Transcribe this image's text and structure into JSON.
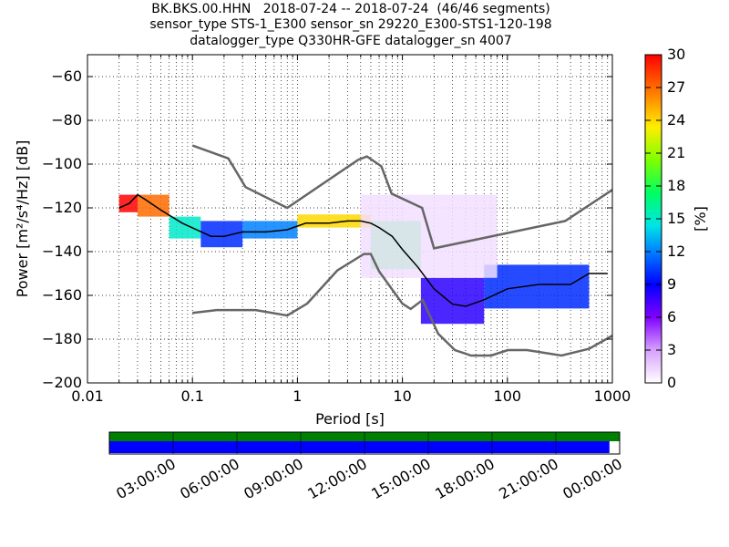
{
  "title": {
    "line1": "BK.BKS.00.HHN   2018-07-24 -- 2018-07-24  (46/46 segments)",
    "line2": "sensor_type STS-1_E300 sensor_sn 29220_E300-STS1-120-198",
    "line3": "datalogger_type Q330HR-GFE datalogger_sn 4007"
  },
  "chart_data": {
    "type": "heatmap",
    "xlabel": "Period [s]",
    "ylabel": "Power [m²/s⁴/Hz] [dB]",
    "xscale": "log",
    "xlim": [
      0.01,
      1000
    ],
    "ylim": [
      -200,
      -50
    ],
    "xticks": [
      "0.01",
      "0.1",
      "1",
      "10",
      "100",
      "1000"
    ],
    "yticks": [
      "−60",
      "−80",
      "−100",
      "−120",
      "−140",
      "−160",
      "−180",
      "−200"
    ],
    "yticks_values": [
      -60,
      -80,
      -100,
      -120,
      -140,
      -160,
      -180,
      -200
    ],
    "grid": true,
    "colorbar": {
      "label": "[%]",
      "min": 0,
      "max": 30,
      "ticks": [
        "0",
        "3",
        "6",
        "9",
        "12",
        "15",
        "18",
        "21",
        "24",
        "27",
        "30"
      ],
      "tick_values": [
        0,
        3,
        6,
        9,
        12,
        15,
        18,
        21,
        24,
        27,
        30
      ]
    },
    "series": [
      {
        "name": "",
        "role": "noise-model-high",
        "color": "#666666",
        "x": [
          0.1,
          0.22,
          0.32,
          0.8,
          3.8,
          4.6,
          6.3,
          7.9,
          15.4,
          20.0,
          354.8,
          10000
        ],
        "y": [
          -91.5,
          -97.4,
          -110.5,
          -120.0,
          -98.0,
          -96.5,
          -101.0,
          -113.5,
          -120.0,
          -138.5,
          -126.0,
          -80.1
        ]
      },
      {
        "name": "",
        "role": "noise-model-low",
        "color": "#666666",
        "x": [
          0.1,
          0.17,
          0.4,
          0.8,
          1.24,
          2.4,
          4.3,
          5.0,
          6.0,
          10.0,
          12.0,
          15.6,
          21.9,
          31.6,
          45.0,
          70.0,
          101.0,
          154.0,
          328.0,
          600.0,
          10000
        ],
        "y": [
          -168.0,
          -166.7,
          -166.7,
          -169.2,
          -163.7,
          -148.6,
          -141.1,
          -141.1,
          -149.0,
          -163.8,
          -166.2,
          -162.1,
          -177.5,
          -185.0,
          -187.5,
          -187.5,
          -185.0,
          -185.0,
          -187.5,
          -184.4,
          -151.5
        ]
      },
      {
        "name": "",
        "role": "median-psd",
        "color": "#000000",
        "x": [
          0.02,
          0.025,
          0.03,
          0.035,
          0.05,
          0.08,
          0.15,
          0.2,
          0.3,
          0.5,
          0.8,
          1.2,
          2,
          3,
          4,
          5,
          6,
          8,
          10,
          14,
          20,
          30,
          40,
          60,
          100,
          200,
          400,
          600,
          900
        ],
        "y": [
          -120,
          -118,
          -114,
          -116,
          -121,
          -127,
          -133,
          -133,
          -131,
          -131,
          -130,
          -127,
          -127,
          -126,
          -126,
          -127,
          -129,
          -133,
          -139,
          -147,
          -157,
          -164,
          -165,
          -162,
          -157,
          -155,
          -155,
          -150,
          -150
        ]
      }
    ],
    "psd_histogram": [
      {
        "period": [
          0.02,
          0.03
        ],
        "db": [
          -122,
          -114
        ],
        "percent": 30
      },
      {
        "period": [
          0.03,
          0.06
        ],
        "db": [
          -124,
          -114
        ],
        "percent": 27
      },
      {
        "period": [
          0.06,
          0.12
        ],
        "db": [
          -134,
          -124
        ],
        "percent": 15
      },
      {
        "period": [
          0.12,
          0.3
        ],
        "db": [
          -138,
          -126
        ],
        "percent": 10
      },
      {
        "period": [
          0.3,
          1.0
        ],
        "db": [
          -134,
          -126
        ],
        "percent": 12
      },
      {
        "period": [
          1.0,
          5.0
        ],
        "db": [
          -129,
          -123
        ],
        "percent": 24
      },
      {
        "period": [
          5.0,
          15.0
        ],
        "db": [
          -148,
          -126
        ],
        "percent": 18
      },
      {
        "period": [
          15.0,
          60.0
        ],
        "db": [
          -173,
          -152
        ],
        "percent": 8
      },
      {
        "period": [
          60.0,
          600.0
        ],
        "db": [
          -166,
          -146
        ],
        "percent": 10
      },
      {
        "period": [
          4.0,
          80.0
        ],
        "db": [
          -152,
          -114
        ],
        "percent": 1
      }
    ]
  },
  "timeline": {
    "ticks": [
      "03:00:00",
      "06:00:00",
      "09:00:00",
      "12:00:00",
      "15:00:00",
      "18:00:00",
      "21:00:00",
      "00:00:00"
    ],
    "coverage_fraction": 1.0,
    "data_fraction": 0.98,
    "coverage_color": "#008000",
    "data_color": "#0000ff"
  }
}
